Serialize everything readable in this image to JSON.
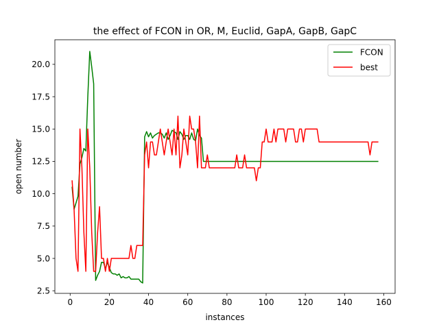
{
  "chart_data": {
    "type": "line",
    "title": "the effect of FCON in OR, M, Euclid, GapA, GapB, GapC",
    "xlabel": "instances",
    "ylabel": "open number",
    "xlim": [
      -7.8,
      165.8
    ],
    "ylim": [
      2.3,
      21.9
    ],
    "x_ticks": [
      0,
      20,
      40,
      60,
      80,
      100,
      120,
      140,
      160
    ],
    "y_ticks": [
      2.5,
      5.0,
      7.5,
      10.0,
      12.5,
      15.0,
      17.5,
      20.0
    ],
    "x_tick_labels": [
      "0",
      "20",
      "40",
      "60",
      "80",
      "100",
      "120",
      "140",
      "160"
    ],
    "y_tick_labels": [
      "2.5",
      "5.0",
      "7.5",
      "10.0",
      "12.5",
      "15.0",
      "17.5",
      "20.0"
    ],
    "legend": {
      "placement": "top-right"
    },
    "series": [
      {
        "name": "FCON",
        "color": "#008000",
        "points": [
          [
            1,
            10.5
          ],
          [
            2,
            8.8
          ],
          [
            3,
            9.3
          ],
          [
            4,
            9.8
          ],
          [
            5,
            12.3
          ],
          [
            6,
            12.8
          ],
          [
            7,
            13.5
          ],
          [
            8,
            13.3
          ],
          [
            9,
            17.5
          ],
          [
            10,
            21.0
          ],
          [
            11,
            19.8
          ],
          [
            12,
            18.5
          ],
          [
            13,
            3.3
          ],
          [
            14,
            3.7
          ],
          [
            15,
            4.0
          ],
          [
            16,
            4.7
          ],
          [
            17,
            4.7
          ],
          [
            18,
            4.2
          ],
          [
            19,
            4.7
          ],
          [
            20,
            4.3
          ],
          [
            21,
            3.9
          ],
          [
            22,
            3.8
          ],
          [
            23,
            3.8
          ],
          [
            24,
            3.7
          ],
          [
            25,
            3.8
          ],
          [
            26,
            3.5
          ],
          [
            27,
            3.6
          ],
          [
            28,
            3.5
          ],
          [
            29,
            3.5
          ],
          [
            30,
            3.6
          ],
          [
            31,
            3.4
          ],
          [
            32,
            3.4
          ],
          [
            33,
            3.4
          ],
          [
            34,
            3.4
          ],
          [
            35,
            3.4
          ],
          [
            36,
            3.2
          ],
          [
            37,
            3.1
          ],
          [
            38,
            14.4
          ],
          [
            39,
            14.8
          ],
          [
            40,
            14.4
          ],
          [
            41,
            14.7
          ],
          [
            42,
            14.3
          ],
          [
            43,
            14.5
          ],
          [
            44,
            14.6
          ],
          [
            45,
            14.7
          ],
          [
            46,
            14.7
          ],
          [
            47,
            14.6
          ],
          [
            48,
            14.3
          ],
          [
            49,
            14.7
          ],
          [
            50,
            14.2
          ],
          [
            51,
            14.5
          ],
          [
            52,
            14.9
          ],
          [
            53,
            14.8
          ],
          [
            54,
            14.7
          ],
          [
            55,
            14.2
          ],
          [
            56,
            14.8
          ],
          [
            57,
            14.6
          ],
          [
            58,
            14.2
          ],
          [
            59,
            14.5
          ],
          [
            60,
            14.5
          ],
          [
            61,
            14.2
          ],
          [
            62,
            14.7
          ],
          [
            63,
            14.2
          ],
          [
            64,
            14.1
          ],
          [
            65,
            15.0
          ],
          [
            66,
            14.5
          ],
          [
            67,
            14.3
          ],
          [
            68,
            12.5
          ],
          [
            69,
            12.5
          ],
          [
            70,
            12.5
          ],
          [
            80,
            12.5
          ],
          [
            90,
            12.5
          ],
          [
            100,
            12.5
          ],
          [
            110,
            12.5
          ],
          [
            120,
            12.5
          ],
          [
            130,
            12.5
          ],
          [
            140,
            12.5
          ],
          [
            150,
            12.5
          ],
          [
            157,
            12.5
          ]
        ]
      },
      {
        "name": "best",
        "color": "#ff0000",
        "points": [
          [
            1,
            11.0
          ],
          [
            2,
            8.8
          ],
          [
            3,
            5.0
          ],
          [
            4,
            4.0
          ],
          [
            5,
            15.0
          ],
          [
            6,
            12.0
          ],
          [
            7,
            7.0
          ],
          [
            8,
            4.0
          ],
          [
            9,
            15.0
          ],
          [
            10,
            12.0
          ],
          [
            11,
            7.0
          ],
          [
            12,
            4.0
          ],
          [
            13,
            4.0
          ],
          [
            14,
            7.0
          ],
          [
            15,
            9.0
          ],
          [
            16,
            5.0
          ],
          [
            17,
            5.0
          ],
          [
            18,
            4.0
          ],
          [
            19,
            5.0
          ],
          [
            20,
            4.0
          ],
          [
            21,
            5.0
          ],
          [
            22,
            5.0
          ],
          [
            30,
            5.0
          ],
          [
            31,
            6.0
          ],
          [
            32,
            5.0
          ],
          [
            33,
            5.0
          ],
          [
            34,
            6.0
          ],
          [
            35,
            6.0
          ],
          [
            36,
            6.0
          ],
          [
            37,
            6.0
          ],
          [
            38,
            13.0
          ],
          [
            39,
            14.0
          ],
          [
            40,
            12.0
          ],
          [
            41,
            14.0
          ],
          [
            42,
            14.0
          ],
          [
            43,
            13.0
          ],
          [
            44,
            13.0
          ],
          [
            45,
            14.0
          ],
          [
            46,
            15.0
          ],
          [
            47,
            14.0
          ],
          [
            48,
            13.0
          ],
          [
            49,
            14.0
          ],
          [
            50,
            15.0
          ],
          [
            51,
            14.0
          ],
          [
            52,
            13.0
          ],
          [
            53,
            15.0
          ],
          [
            54,
            13.0
          ],
          [
            55,
            16.0
          ],
          [
            56,
            12.0
          ],
          [
            57,
            13.0
          ],
          [
            58,
            15.0
          ],
          [
            59,
            14.0
          ],
          [
            60,
            13.0
          ],
          [
            61,
            16.0
          ],
          [
            62,
            15.0
          ],
          [
            63,
            15.0
          ],
          [
            64,
            14.0
          ],
          [
            65,
            12.0
          ],
          [
            66,
            16.0
          ],
          [
            67,
            12.0
          ],
          [
            68,
            12.0
          ],
          [
            69,
            12.0
          ],
          [
            70,
            13.0
          ],
          [
            71,
            12.0
          ],
          [
            72,
            12.0
          ],
          [
            84,
            12.0
          ],
          [
            85,
            13.0
          ],
          [
            86,
            12.0
          ],
          [
            87,
            12.0
          ],
          [
            88,
            12.0
          ],
          [
            89,
            13.0
          ],
          [
            90,
            12.0
          ],
          [
            91,
            12.0
          ],
          [
            92,
            12.0
          ],
          [
            93,
            12.0
          ],
          [
            94,
            12.0
          ],
          [
            95,
            11.0
          ],
          [
            96,
            12.0
          ],
          [
            97,
            12.0
          ],
          [
            98,
            14.0
          ],
          [
            99,
            14.0
          ],
          [
            100,
            15.0
          ],
          [
            101,
            14.0
          ],
          [
            102,
            14.0
          ],
          [
            103,
            14.0
          ],
          [
            104,
            15.0
          ],
          [
            105,
            14.0
          ],
          [
            106,
            15.0
          ],
          [
            107,
            15.0
          ],
          [
            108,
            15.0
          ],
          [
            109,
            15.0
          ],
          [
            110,
            14.0
          ],
          [
            111,
            15.0
          ],
          [
            112,
            15.0
          ],
          [
            113,
            15.0
          ],
          [
            114,
            15.0
          ],
          [
            115,
            14.0
          ],
          [
            116,
            14.0
          ],
          [
            117,
            15.0
          ],
          [
            118,
            15.0
          ],
          [
            119,
            14.0
          ],
          [
            120,
            15.0
          ],
          [
            121,
            15.0
          ],
          [
            122,
            15.0
          ],
          [
            123,
            15.0
          ],
          [
            124,
            15.0
          ],
          [
            125,
            15.0
          ],
          [
            126,
            15.0
          ],
          [
            127,
            14.0
          ],
          [
            128,
            14.0
          ],
          [
            140,
            14.0
          ],
          [
            150,
            14.0
          ],
          [
            152,
            14.0
          ],
          [
            153,
            13.0
          ],
          [
            154,
            14.0
          ],
          [
            155,
            14.0
          ],
          [
            156,
            14.0
          ],
          [
            157,
            14.0
          ]
        ]
      }
    ]
  }
}
